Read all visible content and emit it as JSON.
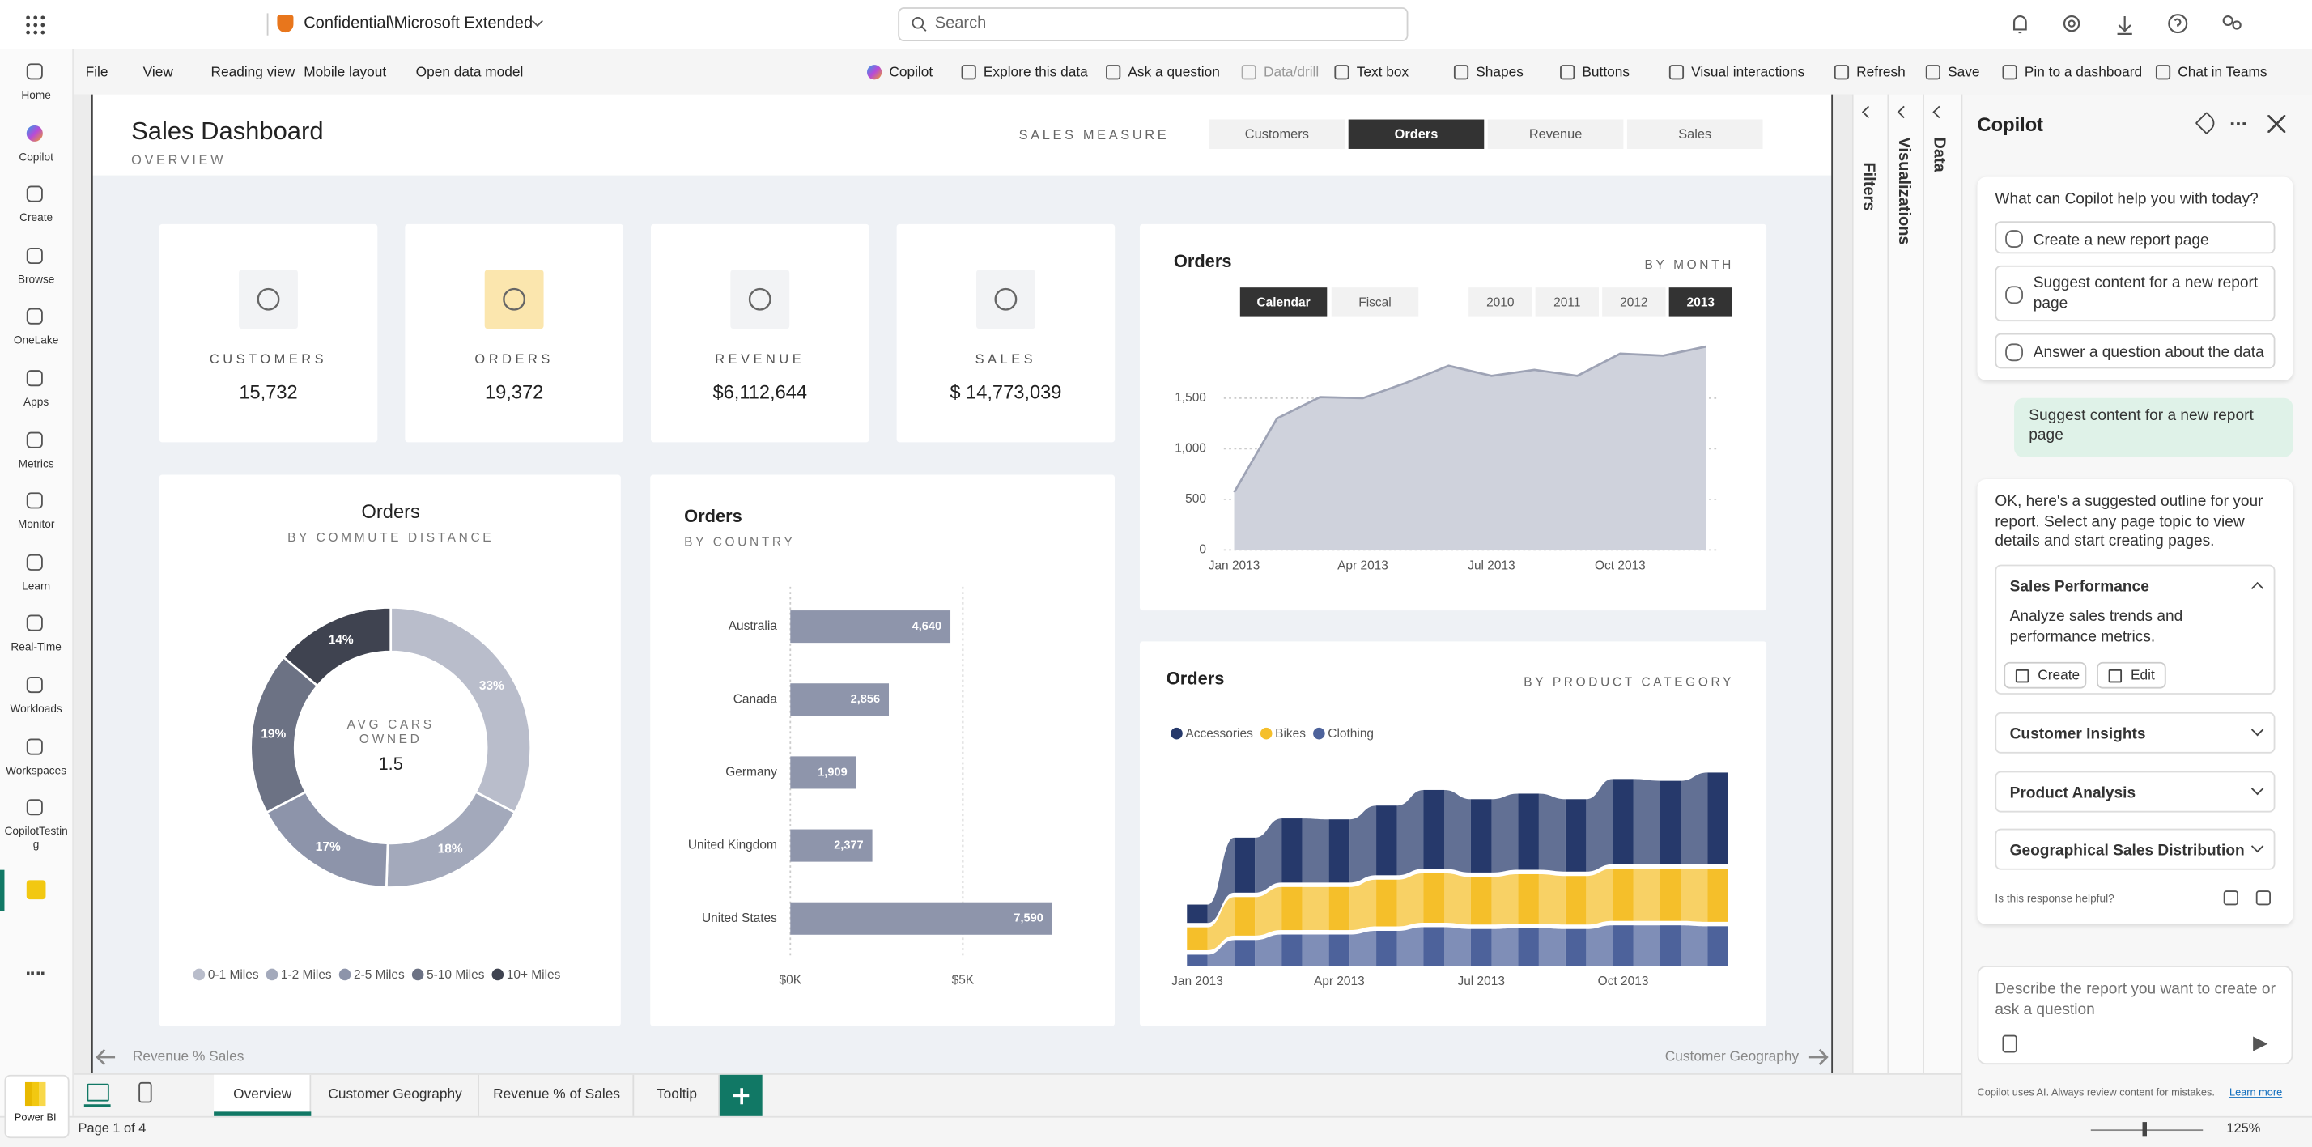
{
  "topbar": {
    "breadcrumb": "Confidential\\Microsoft Extended",
    "search": "Search"
  },
  "nav": {
    "items": [
      "Home",
      "Copilot",
      "Create",
      "Browse",
      "OneLake",
      "Apps",
      "Metrics",
      "Monitor",
      "Learn",
      "Real-Time",
      "Workloads",
      "Workspaces",
      "CopilotTesting"
    ],
    "app": "Power BI"
  },
  "menu": [
    "File",
    "View",
    "Reading view",
    "Mobile layout",
    "Open data model"
  ],
  "toolbar": [
    "Copilot",
    "Explore this data",
    "Ask a question",
    "Data/drill",
    "Text box",
    "Shapes",
    "Buttons",
    "Visual interactions",
    "Refresh",
    "Save",
    "Pin to a dashboard",
    "Chat in Teams"
  ],
  "report": {
    "title": "Sales Dashboard",
    "subtitle": "OVERVIEW",
    "measure_label": "SALES MEASURE",
    "measures": [
      "Customers",
      "Orders",
      "Revenue",
      "Sales"
    ],
    "kpis": [
      {
        "label": "CUSTOMERS",
        "value": "15,732"
      },
      {
        "label": "ORDERS",
        "value": "19,372"
      },
      {
        "label": "REVENUE",
        "value": "$6,112,644"
      },
      {
        "label": "SALES",
        "value": "$ 14,773,039"
      }
    ],
    "prev_page": "Revenue % Sales",
    "next_page": "Customer Geography"
  },
  "chart_data": [
    {
      "type": "area",
      "title": "Orders",
      "subtitle": "BY MONTH",
      "toggles": [
        "Calendar",
        "Fiscal"
      ],
      "years": [
        "2010",
        "2011",
        "2012",
        "2013"
      ],
      "categories": [
        "Jan 2013",
        null,
        null,
        "Apr 2013",
        null,
        null,
        "Jul 2013",
        null,
        null,
        "Oct 2013",
        null,
        null
      ],
      "values": [
        570,
        1300,
        1510,
        1500,
        1650,
        1820,
        1720,
        1780,
        1720,
        1940,
        1920,
        2010
      ],
      "color": "#cfd2dc",
      "line_color": "#9ea3b5",
      "ylim": [
        0,
        2200
      ],
      "yticks": [
        0,
        500,
        {
          "value": 1000,
          "label": "1,000"
        },
        {
          "value": 1500,
          "label": "1,500"
        }
      ],
      "grid": true
    },
    {
      "type": "donut",
      "title": "Orders",
      "subtitle": "BY COMMUTE DISTANCE",
      "center_label": "AVG CARS OWNED",
      "center_value": "1.5",
      "categories": [
        "0-1 Miles",
        "1-2 Miles",
        "2-5 Miles",
        "5-10 Miles",
        "10+ Miles"
      ],
      "values": [
        33,
        18,
        17,
        19,
        14
      ],
      "value_labels": [
        "33%",
        "18%",
        "17%",
        "19%",
        "14%"
      ],
      "colors": [
        "#b9bdcb",
        "#a3a9bb",
        "#8d94aa",
        "#6c7284",
        "#3f4350"
      ]
    },
    {
      "type": "hbar",
      "title": "Orders",
      "subtitle": "BY COUNTRY",
      "categories": [
        "Australia",
        "Canada",
        "Germany",
        "United Kingdom",
        "United States"
      ],
      "values": [
        4640,
        2856,
        1909,
        2377,
        7590
      ],
      "value_labels": [
        "4,640",
        "2,856",
        "1,909",
        "2,377",
        "7,590"
      ],
      "color": "#8e95ab",
      "xlim": [
        0,
        8000
      ],
      "xticks": [
        {
          "value": 0,
          "label": "$0K"
        },
        {
          "value": 5000,
          "label": "$5K"
        }
      ],
      "grid": true
    },
    {
      "type": "ribbon",
      "title": "Orders",
      "subtitle": "BY PRODUCT CATEGORY",
      "categories": [
        "Jan 2013",
        null,
        null,
        "Apr 2013",
        null,
        null,
        "Jul 2013",
        null,
        null,
        "Oct 2013",
        null,
        null
      ],
      "series": [
        {
          "name": "Accessories",
          "color": "#26396b",
          "values": [
            200,
            600,
            700,
            690,
            760,
            860,
            800,
            830,
            790,
            930,
            910,
            1000
          ]
        },
        {
          "name": "Bikes",
          "color": "#f5bf2a",
          "values": [
            250,
            420,
            470,
            470,
            510,
            540,
            520,
            540,
            530,
            570,
            570,
            580
          ]
        },
        {
          "name": "Clothing",
          "color": "#4d629b",
          "values": [
            120,
            280,
            340,
            340,
            380,
            420,
            400,
            410,
            400,
            440,
            440,
            430
          ]
        }
      ]
    }
  ],
  "panes": [
    "Filters",
    "Visualizations",
    "Data"
  ],
  "copilot": {
    "title": "Copilot",
    "prompt": "What can Copilot help you with today?",
    "suggestions": [
      "Create a new report page",
      "Suggest content for a new report page",
      "Answer a question about the data"
    ],
    "user_message": "Suggest content for a new report page",
    "response": "OK, here's a suggested outline for your report. Select any page topic to view details and start creating pages.",
    "sections": [
      {
        "title": "Sales Performance",
        "description": "Analyze sales trends and performance metrics."
      },
      {
        "title": "Customer Insights"
      },
      {
        "title": "Product Analysis"
      },
      {
        "title": "Geographical Sales Distribution"
      }
    ],
    "actions": [
      "Create",
      "Edit"
    ],
    "feedback": "Is this response helpful?",
    "input": "Describe the report you want to create or ask a question",
    "disclaimer": "Copilot uses AI. Always review content for mistakes.",
    "link": "Learn more"
  },
  "tabs": [
    "Overview",
    "Customer Geography",
    "Revenue % of Sales",
    "Tooltip"
  ],
  "status": {
    "page": "Page 1 of 4",
    "zoom": "125%"
  }
}
